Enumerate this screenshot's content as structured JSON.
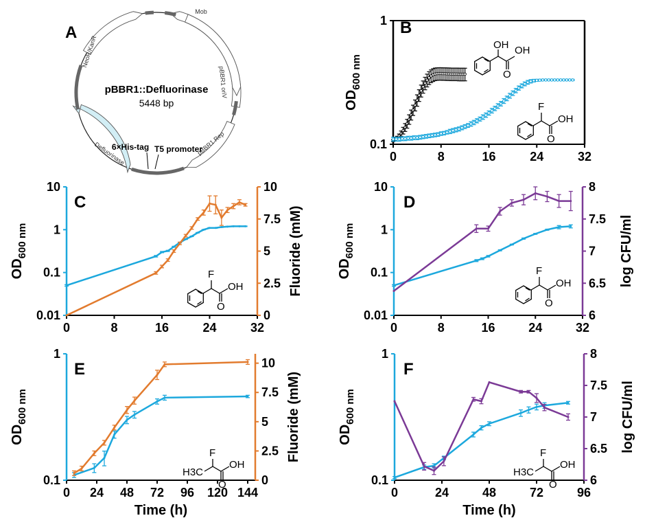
{
  "plasmid": {
    "letter": "A",
    "name": "pBBR1::Defluorinase",
    "size": "5448 bp",
    "features": {
      "mob": "Mob",
      "neor": "NeoR/KanR",
      "ori": "pBBR1 oriV",
      "rep": "pBBR1 Rep",
      "defl": "Defluorinase",
      "his": "6×His-tag",
      "t5": "T5 promoter"
    }
  },
  "chemicals": {
    "oh": "OH",
    "f": "F",
    "o": "O",
    "h3c": "H3C"
  },
  "colors": {
    "cyan": "#1CA8DD",
    "orange": "#E27B2E",
    "purple": "#7B3A96",
    "black": "#111111",
    "defluorinase_fill": "#D2EEF5"
  },
  "chart_data": [
    {
      "panel": "B",
      "type": "line",
      "yscale": "log",
      "ylabel": "OD600 nm",
      "xlabel": "",
      "xlim": [
        0,
        32
      ],
      "ylim": [
        0.1,
        1
      ],
      "xticks": [
        "0",
        "8",
        "16",
        "24",
        "32"
      ],
      "yticks": [
        "0.1",
        "1"
      ],
      "series": [
        {
          "color": "#111111",
          "marker": "open-circle",
          "x": [
            0,
            0.33,
            0.67,
            1.0,
            1.33,
            1.67,
            2.0,
            2.33,
            2.67,
            3.0,
            3.33,
            3.67,
            4.0,
            4.33,
            4.67,
            5.0,
            5.33,
            5.67,
            6.0,
            6.33,
            6.67,
            7.0,
            7.33,
            7.67,
            8.0,
            8.33,
            8.67,
            9.0,
            9.33,
            9.67,
            10.0,
            10.33,
            10.67,
            11.0,
            11.33,
            11.67,
            12.0
          ],
          "y": [
            0.107,
            0.11,
            0.113,
            0.117,
            0.122,
            0.129,
            0.137,
            0.147,
            0.159,
            0.173,
            0.189,
            0.207,
            0.227,
            0.249,
            0.271,
            0.292,
            0.312,
            0.33,
            0.345,
            0.357,
            0.365,
            0.37,
            0.372,
            0.373,
            0.373,
            0.372,
            0.372,
            0.371,
            0.371,
            0.37,
            0.37,
            0.37,
            0.37,
            0.369,
            0.369,
            0.369,
            0.369
          ],
          "err": [
            0.002,
            0.003,
            0.003,
            0.004,
            0.006,
            0.008,
            0.01,
            0.012,
            0.014,
            0.016,
            0.018,
            0.021,
            0.024,
            0.027,
            0.03,
            0.033,
            0.036,
            0.039,
            0.041,
            0.042,
            0.043,
            0.043,
            0.043,
            0.043,
            0.043,
            0.043,
            0.043,
            0.043,
            0.043,
            0.043,
            0.043,
            0.043,
            0.043,
            0.043,
            0.043,
            0.043,
            0.043
          ]
        },
        {
          "color": "#1CA8DD",
          "marker": "open-circle",
          "x": [
            0,
            0.5,
            1,
            1.5,
            2,
            2.5,
            3,
            3.5,
            4,
            4.5,
            5,
            5.5,
            6,
            6.5,
            7,
            7.5,
            8,
            8.5,
            9,
            9.5,
            10,
            10.5,
            11,
            11.5,
            12,
            12.5,
            13,
            13.5,
            14,
            14.5,
            15,
            15.5,
            16,
            16.5,
            17,
            17.5,
            18,
            18.5,
            19,
            19.5,
            20,
            20.5,
            21,
            21.5,
            22,
            22.5,
            23,
            23.5,
            24,
            24.5,
            25,
            25.5,
            26,
            26.5,
            27,
            27.5,
            28,
            28.5,
            29,
            29.5,
            30
          ],
          "y": [
            0.11,
            0.11,
            0.11,
            0.111,
            0.111,
            0.112,
            0.112,
            0.113,
            0.113,
            0.114,
            0.115,
            0.116,
            0.117,
            0.118,
            0.119,
            0.12,
            0.122,
            0.123,
            0.125,
            0.127,
            0.129,
            0.131,
            0.133,
            0.136,
            0.139,
            0.142,
            0.146,
            0.15,
            0.155,
            0.16,
            0.166,
            0.172,
            0.179,
            0.187,
            0.195,
            0.204,
            0.213,
            0.224,
            0.235,
            0.247,
            0.259,
            0.272,
            0.285,
            0.297,
            0.308,
            0.317,
            0.323,
            0.327,
            0.329,
            0.33,
            0.331,
            0.331,
            0.331,
            0.331,
            0.331,
            0.331,
            0.331,
            0.331,
            0.331,
            0.331,
            0.331
          ],
          "err": [
            0.004,
            0.004,
            0.004,
            0.004,
            0.004,
            0.004,
            0.004,
            0.004,
            0.004,
            0.004,
            0.004,
            0.004,
            0.004,
            0.004,
            0.004,
            0.004,
            0.004,
            0.004,
            0.004,
            0.005,
            0.005,
            0.005,
            0.005,
            0.005,
            0.005,
            0.005,
            0.006,
            0.006,
            0.006,
            0.006,
            0.007,
            0.007,
            0.007,
            0.008,
            0.008,
            0.009,
            0.009,
            0.01,
            0.01,
            0.011,
            0.011,
            0.011,
            0.011,
            0.011,
            0.011,
            0.011,
            0.01,
            0.008,
            0.006,
            0.005,
            0.004,
            0.004,
            0.004,
            0.004,
            0.004,
            0.004,
            0.004,
            0.004,
            0.004,
            0.004,
            0.004
          ]
        }
      ]
    },
    {
      "panel": "C",
      "type": "line",
      "yscale": "log",
      "ylabel": "OD600 nm",
      "y2label": "Fluoride (mM)",
      "xlabel": "",
      "xlim": [
        0,
        32
      ],
      "ylim": [
        0.01,
        10
      ],
      "y2lim": [
        0,
        10
      ],
      "xticks": [
        "0",
        "8",
        "16",
        "24",
        "32"
      ],
      "yticks": [
        "0.01",
        "0.1",
        "1",
        "10"
      ],
      "y2ticks": [
        "0",
        "2.5",
        "5",
        "7.5",
        "10"
      ],
      "series": [
        {
          "color": "#1CA8DD",
          "axis": "left",
          "x": [
            0,
            15,
            16,
            17,
            18,
            19,
            20,
            21,
            22,
            23,
            24,
            25,
            26,
            27,
            28,
            29,
            30
          ],
          "y": [
            0.05,
            0.24,
            0.3,
            0.32,
            0.4,
            0.5,
            0.6,
            0.7,
            0.85,
            1.0,
            1.1,
            1.1,
            1.15,
            1.18,
            1.2,
            1.2,
            1.2
          ],
          "err": [
            0.002,
            0.01,
            0.01,
            0.01,
            0.01,
            0.01,
            0.01,
            0.01,
            0.01,
            0.01,
            0.02,
            0.02,
            0.02,
            0.02,
            0.02,
            0.02,
            0.02
          ]
        },
        {
          "color": "#E27B2E",
          "axis": "right",
          "x": [
            0,
            15,
            16,
            17,
            18,
            19,
            20,
            21,
            22,
            23,
            24,
            25,
            26,
            27,
            28,
            29,
            30
          ],
          "y": [
            0,
            3.3,
            3.8,
            4.3,
            5.0,
            5.6,
            6.2,
            6.8,
            7.5,
            8.0,
            8.7,
            8.6,
            7.6,
            8.2,
            8.5,
            8.8,
            8.6
          ],
          "err": [
            0,
            0.1,
            0.1,
            0.1,
            0.1,
            0.1,
            0.1,
            0.1,
            0.1,
            0.2,
            0.6,
            0.7,
            0.6,
            0.2,
            0.2,
            0.2,
            0.1
          ]
        }
      ]
    },
    {
      "panel": "D",
      "type": "line",
      "yscale": "log",
      "ylabel": "OD600 nm",
      "y2label": "log CFU/ml",
      "xlabel": "",
      "xlim": [
        0,
        32
      ],
      "ylim": [
        0.01,
        10
      ],
      "y2lim": [
        6,
        8
      ],
      "xticks": [
        "0",
        "8",
        "16",
        "24",
        "32"
      ],
      "yticks": [
        "0.01",
        "0.1",
        "1",
        "10"
      ],
      "y2ticks": [
        "6",
        "6.5",
        "7",
        "7.5",
        "8"
      ],
      "series": [
        {
          "color": "#1CA8DD",
          "axis": "left",
          "x": [
            0,
            14,
            15,
            16,
            18,
            20,
            22,
            24,
            26,
            28,
            30
          ],
          "y": [
            0.05,
            0.19,
            0.21,
            0.24,
            0.33,
            0.45,
            0.62,
            0.8,
            1.0,
            1.15,
            1.2
          ],
          "err": [
            0.002,
            0.01,
            0.01,
            0.01,
            0.01,
            0.01,
            0.02,
            0.02,
            0.03,
            0.1,
            0.1
          ]
        },
        {
          "color": "#7B3A96",
          "axis": "right",
          "x": [
            0,
            14,
            16,
            18,
            20,
            22,
            24,
            26,
            28,
            30
          ],
          "y": [
            6.38,
            7.35,
            7.35,
            7.62,
            7.75,
            7.8,
            7.9,
            7.85,
            7.78,
            7.78
          ],
          "err": [
            0,
            0.06,
            0.04,
            0.06,
            0.05,
            0.08,
            0.1,
            0.08,
            0.1,
            0.15
          ]
        }
      ]
    },
    {
      "panel": "E",
      "type": "line",
      "yscale": "log",
      "ylabel": "OD600 nm",
      "y2label": "Fluoride (mM)",
      "xlabel": "Time (h)",
      "xlim": [
        0,
        150
      ],
      "ylim": [
        0.1,
        1
      ],
      "y2lim": [
        0,
        10.8
      ],
      "xticks": [
        "0",
        "24",
        "48",
        "72",
        "96",
        "120",
        "144"
      ],
      "yticks": [
        "0.1",
        "1"
      ],
      "y2ticks": [
        "0",
        "2.5",
        "5",
        "7.5",
        "10"
      ],
      "series": [
        {
          "color": "#1CA8DD",
          "axis": "left",
          "x": [
            6,
            22,
            30,
            38,
            48,
            54,
            72,
            78,
            144
          ],
          "y": [
            0.11,
            0.125,
            0.15,
            0.23,
            0.3,
            0.33,
            0.42,
            0.45,
            0.46
          ],
          "err": [
            0.005,
            0.01,
            0.02,
            0.015,
            0.02,
            0.02,
            0.02,
            0.02,
            0.01
          ]
        },
        {
          "color": "#E27B2E",
          "axis": "right",
          "x": [
            6,
            12,
            22,
            30,
            38,
            48,
            54,
            72,
            78,
            144
          ],
          "y": [
            0.6,
            1.0,
            2.3,
            3.2,
            4.5,
            6.0,
            6.8,
            9.0,
            9.9,
            10.1
          ],
          "err": [
            0.2,
            0.2,
            0.2,
            0.2,
            0.2,
            0.3,
            0.3,
            0.4,
            0.2,
            0.2
          ]
        }
      ]
    },
    {
      "panel": "F",
      "type": "line",
      "yscale": "log",
      "ylabel": "OD600 nm",
      "y2label": "log CFU/ml",
      "xlabel": "Time (h)",
      "xlim": [
        0,
        96
      ],
      "ylim": [
        0.1,
        1
      ],
      "y2lim": [
        6,
        8
      ],
      "xticks": [
        "0",
        "24",
        "48",
        "72",
        "96"
      ],
      "yticks": [
        "0.1",
        "1"
      ],
      "y2ticks": [
        "6",
        "6.5",
        "7",
        "7.5",
        "8"
      ],
      "series": [
        {
          "color": "#1CA8DD",
          "axis": "left",
          "x": [
            0,
            15,
            20,
            25,
            40,
            44,
            48,
            64,
            68,
            72,
            76,
            88
          ],
          "y": [
            0.105,
            0.127,
            0.13,
            0.15,
            0.23,
            0.26,
            0.28,
            0.34,
            0.36,
            0.38,
            0.39,
            0.41
          ],
          "err": [
            0.002,
            0.005,
            0.005,
            0.005,
            0.01,
            0.01,
            0.01,
            0.02,
            0.02,
            0.02,
            0.02,
            0.01
          ]
        },
        {
          "color": "#7B3A96",
          "axis": "right",
          "x": [
            0,
            15,
            20,
            25,
            40,
            44,
            48,
            64,
            68,
            72,
            76,
            88
          ],
          "y": [
            7.25,
            6.22,
            6.15,
            6.3,
            7.28,
            7.25,
            7.55,
            7.4,
            7.4,
            7.3,
            7.15,
            7.0
          ],
          "err": [
            0,
            0.06,
            0.06,
            0.07,
            0.03,
            0.04,
            0,
            0.02,
            0.02,
            0.07,
            0.05,
            0.05
          ]
        }
      ]
    }
  ]
}
